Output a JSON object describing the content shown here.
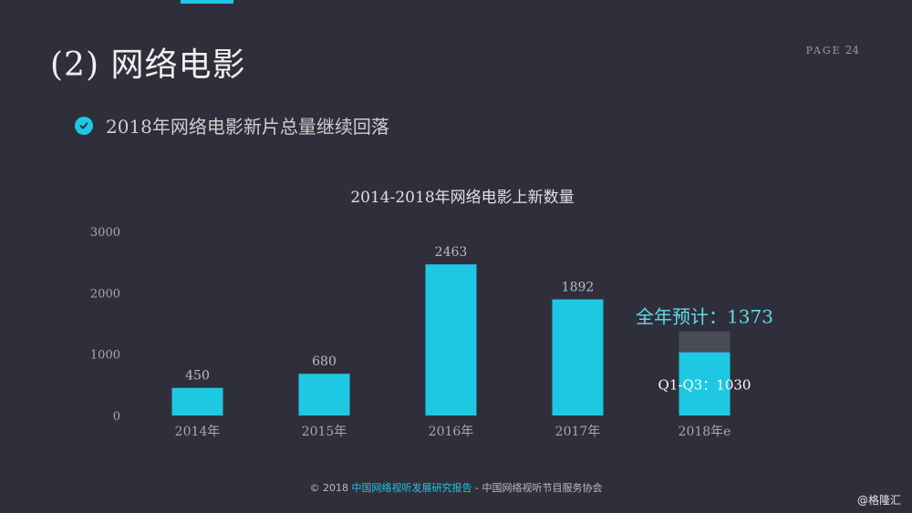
{
  "header": {
    "title": "(2) 网络电影",
    "page_label": "PAGE",
    "page_number": "24"
  },
  "bullet": {
    "text": "2018年网络电影新片总量继续回落"
  },
  "chart_data": {
    "type": "bar",
    "title": "2014-2018年网络电影上新数量",
    "categories": [
      "2014年",
      "2015年",
      "2016年",
      "2017年",
      "2018年e"
    ],
    "values": [
      450,
      680,
      2463,
      1892,
      1373
    ],
    "data_labels": [
      "450",
      "680",
      "2463",
      "1892",
      ""
    ],
    "yticks": [
      0,
      1000,
      2000,
      3000
    ],
    "ylim": [
      0,
      3000
    ],
    "grid": false,
    "stacked_last": {
      "actual_value": 1030,
      "actual_label": "Q1-Q3：1030",
      "projected_value": 1373,
      "projected_label": "全年预计：1373"
    },
    "colors": {
      "bar": "#1ec8e3",
      "projected": "#4a4c58",
      "projected_label": "#5fdcef"
    }
  },
  "footer": {
    "prefix": "© 2018 ",
    "highlight": "中国网络视听发展研究报告",
    "suffix": " - 中国网络视听节目服务协会"
  },
  "watermark": "@格隆汇"
}
